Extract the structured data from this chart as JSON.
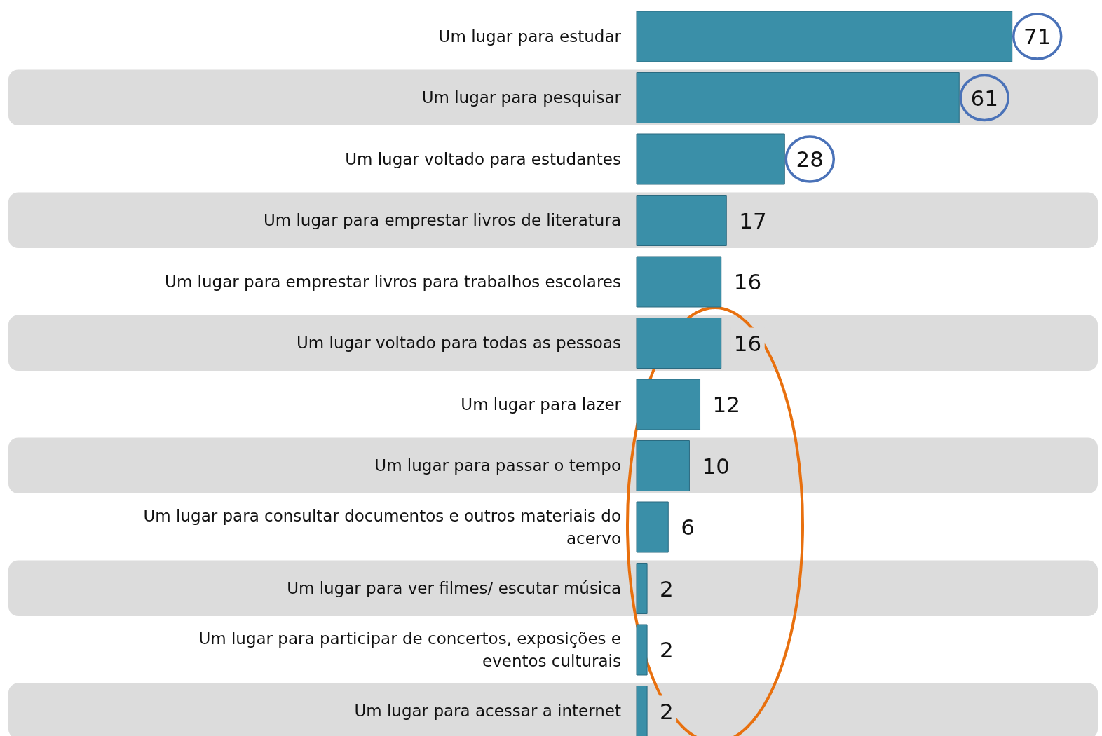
{
  "chart_data": {
    "type": "bar",
    "orientation": "horizontal",
    "data_labels": true,
    "color": "#3a8fa8",
    "categories": [
      "Um lugar para estudar",
      "Um lugar para pesquisar",
      "Um lugar voltado para estudantes",
      "Um lugar para emprestar livros de literatura",
      "Um lugar para emprestar livros para trabalhos escolares",
      "Um lugar voltado para todas as pessoas",
      "Um lugar para lazer",
      "Um lugar para passar o tempo",
      "Um lugar para consultar documentos e outros materiais do acervo",
      "Um lugar para ver filmes/ escutar música",
      "Um lugar para participar de concertos, exposições e eventos culturais",
      "Um lugar para acessar a internet"
    ],
    "values": [
      71,
      61,
      28,
      17,
      16,
      16,
      12,
      10,
      6,
      2,
      2,
      2
    ]
  }
}
